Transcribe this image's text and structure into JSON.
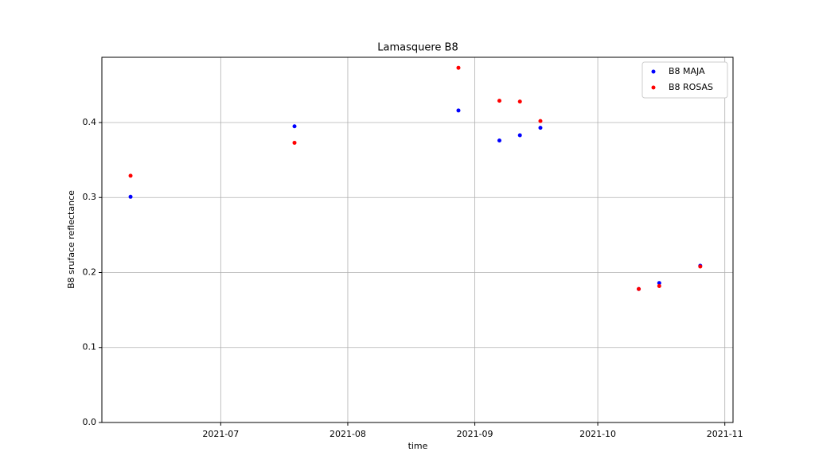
{
  "chart_data": {
    "type": "scatter",
    "title": "Lamasquere B8",
    "x_label": "time",
    "y_label": "B8 sruface reflectance",
    "series": [
      {
        "name": "B8 MAJA",
        "color": "#0000ff",
        "x": [
          "2021-06-09",
          "2021-07-19",
          "2021-08-28",
          "2021-09-07",
          "2021-09-12",
          "2021-09-17",
          "2021-10-11",
          "2021-10-16",
          "2021-10-26"
        ],
        "values": [
          0.301,
          0.395,
          0.416,
          0.376,
          0.383,
          0.393,
          0.178,
          0.186,
          0.209
        ]
      },
      {
        "name": "B8 ROSAS",
        "color": "#ff0000",
        "x": [
          "2021-06-09",
          "2021-07-19",
          "2021-08-28",
          "2021-09-07",
          "2021-09-12",
          "2021-09-17",
          "2021-10-11",
          "2021-10-16",
          "2021-10-26"
        ],
        "values": [
          0.329,
          0.373,
          0.473,
          0.429,
          0.428,
          0.402,
          0.178,
          0.182,
          0.208
        ]
      }
    ],
    "xlim": [
      "2021-06-02",
      "2021-11-03"
    ],
    "xticks": [
      {
        "value": "2021-07-01",
        "label": "2021-07"
      },
      {
        "value": "2021-08-01",
        "label": "2021-08"
      },
      {
        "value": "2021-09-01",
        "label": "2021-09"
      },
      {
        "value": "2021-10-01",
        "label": "2021-10"
      },
      {
        "value": "2021-11-01",
        "label": "2021-11"
      }
    ],
    "ylim": [
      0,
      0.487
    ],
    "yticks": [
      {
        "value": 0,
        "label": "0.0"
      },
      0.1,
      0.2,
      0.3,
      0.4
    ],
    "grid": true,
    "legend": "upper right"
  }
}
